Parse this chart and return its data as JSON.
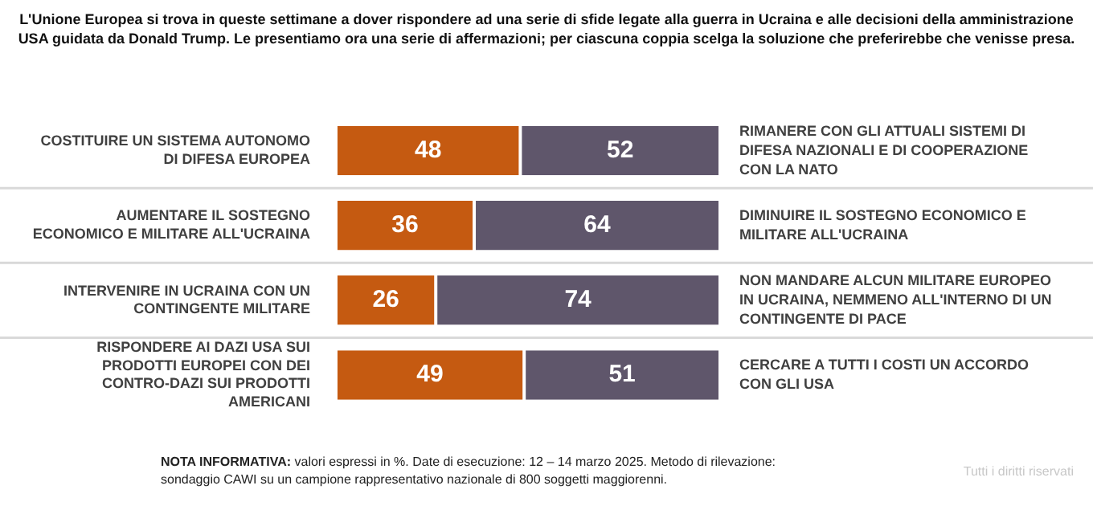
{
  "chart_data": {
    "type": "bar",
    "orientation": "horizontal",
    "stacked": true,
    "title": "L'Unione Europea si trova in queste settimane a dover rispondere ad una serie di sfide legate alla guerra in Ucraina e alle decisioni della amministrazione USA guidata da Donald Trump. Le presentiamo ora una serie di affermazioni; per ciascuna coppia scelga la soluzione che preferirebbe che venisse presa.",
    "categories": [
      "COSTITUIRE UN SISTEMA AUTONOMO DI DIFESA EUROPEA",
      "AUMENTARE IL SOSTEGNO ECONOMICO E MILITARE ALL'UCRAINA",
      "INTERVENIRE IN UCRAINA CON UN CONTINGENTE MILITARE",
      "RISPONDERE AI DAZI USA SUI PRODOTTI EUROPEI CON DEI CONTRO-DAZI SUI PRODOTTI AMERICANI"
    ],
    "series": [
      {
        "color": "#c55a11",
        "values": [
          48,
          36,
          26,
          49
        ]
      },
      {
        "color": "#5f566b",
        "values": [
          52,
          64,
          74,
          51
        ]
      }
    ],
    "xlim": [
      0,
      100
    ],
    "tick_labels": "y",
    "data_labels": true,
    "grid": "y",
    "annotations": [
      "RIMANERE CON GLI ATTUALI SISTEMI DI DIFESA NAZIONALI E DI COOPERAZIONE CON LA NATO",
      "DIMINUIRE IL SOSTEGNO ECONOMICO E MILITARE ALL'UCRAINA",
      "NON MANDARE ALCUN MILITARE EUROPEO IN UCRAINA, NEMMENO ALL'INTERNO DI UN CONTINGENTE DI PACE",
      "CERCARE A TUTTI I COSTI UN ACCORDO CON GLI USA",
      "NOTA INFORMATIVA: valori espressi in %. Date di esecuzione: 12 – 14 marzo 2025. Metodo di rilevazione: sondaggio CAWI su un campione rappresentativo nazionale di 800 soggetti maggiorenni.",
      "Tutti i diritti riservati"
    ]
  }
}
